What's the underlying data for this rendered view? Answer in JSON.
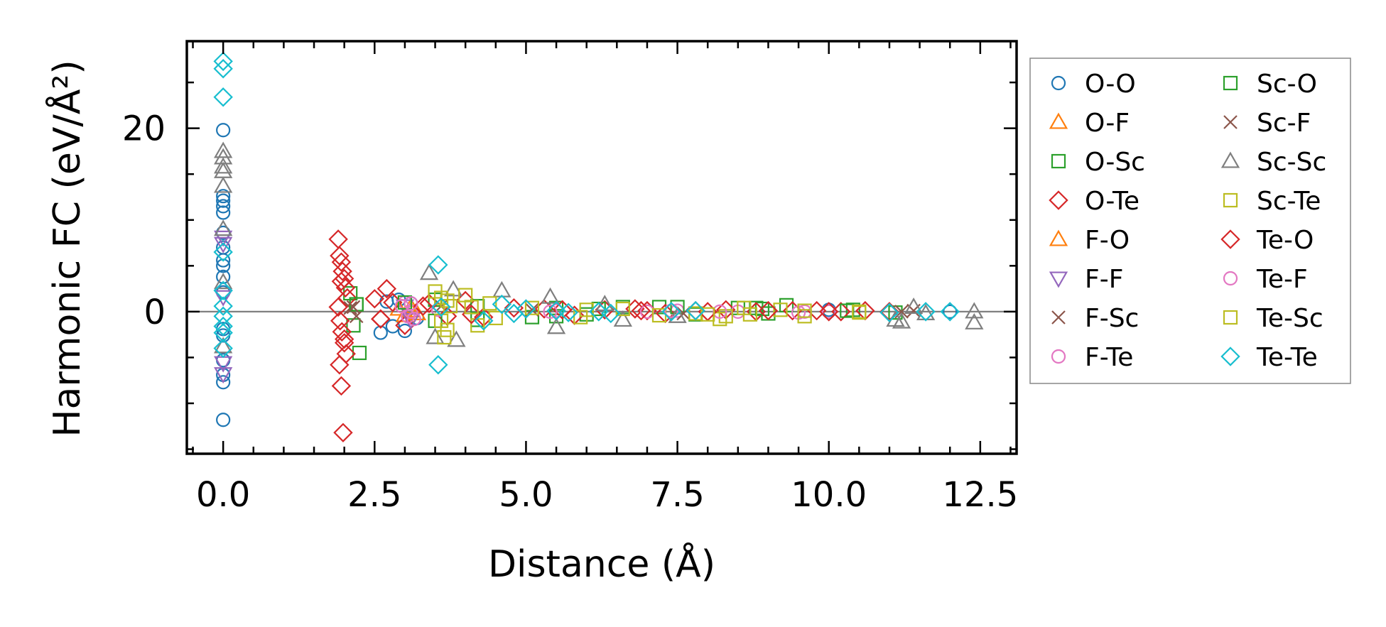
{
  "chart_data": {
    "type": "scatter",
    "title": "",
    "xlabel": "Distance (Å)",
    "ylabel": "Harmonic FC (eV/Å²)",
    "xlim": [
      -0.6,
      13.1
    ],
    "ylim": [
      -15.5,
      29.5
    ],
    "xticks": [
      0.0,
      2.5,
      5.0,
      7.5,
      10.0,
      12.5
    ],
    "xtick_labels": [
      "0.0",
      "2.5",
      "5.0",
      "7.5",
      "10.0",
      "12.5"
    ],
    "yticks": [
      0,
      20
    ],
    "ytick_labels": [
      "0",
      "20"
    ],
    "reference_line_y": 0,
    "legend_position": "outside-right",
    "series": [
      {
        "name": "O-O",
        "marker": "circle",
        "color": "#1f77b4",
        "x": [
          0,
          0,
          0,
          0,
          0,
          0,
          0,
          0,
          0,
          0,
          0,
          0,
          0,
          0,
          0,
          0,
          0,
          2.6,
          2.7,
          2.8,
          2.9,
          3.0,
          3.1,
          3.2,
          10.0,
          12.0
        ],
        "y": [
          19.8,
          12.6,
          12.1,
          11.5,
          10.8,
          8.6,
          7.0,
          5.6,
          5.0,
          3.8,
          2.1,
          -1.9,
          -2.6,
          -5.3,
          -6.9,
          -7.7,
          -11.8,
          -2.3,
          1.1,
          -1.6,
          1.3,
          -2.1,
          0.9,
          -0.7,
          0.2,
          0.0
        ]
      },
      {
        "name": "O-F",
        "marker": "triangle-up",
        "color": "#ff7f0e",
        "x": [
          2.9,
          3.0,
          3.1
        ],
        "y": [
          0.3,
          -0.4,
          0.1
        ]
      },
      {
        "name": "O-Sc",
        "marker": "square",
        "color": "#2ca02c",
        "x": [
          2.1,
          2.15,
          2.2,
          2.25,
          3.5,
          4.2,
          5.1,
          5.5,
          6.0,
          6.6,
          7.2,
          7.8,
          8.5,
          8.9,
          9.3,
          10.4,
          11.1
        ],
        "y": [
          2.0,
          -1.5,
          0.8,
          -4.5,
          1.3,
          -0.9,
          -0.6,
          0.4,
          -0.3,
          0.5,
          0.5,
          -0.3,
          0.4,
          0.3,
          0.7,
          0.2,
          -0.1
        ]
      },
      {
        "name": "O-Te",
        "marker": "diamond",
        "color": "#d62728",
        "x": [
          1.9,
          1.92,
          1.95,
          1.97,
          2.0,
          2.02,
          2.05,
          1.9,
          1.93,
          1.96,
          2.0,
          2.03,
          1.92,
          1.95,
          1.98,
          2.5,
          2.6,
          2.7,
          2.8,
          3.0,
          3.4,
          3.7,
          4.0,
          4.3,
          4.8,
          5.3,
          5.8,
          6.3,
          6.8,
          7.0,
          7.3,
          7.8,
          8.3,
          8.8,
          9.4,
          9.8,
          10.2,
          10.6,
          11.0
        ],
        "y": [
          7.9,
          6.1,
          5.4,
          4.4,
          3.6,
          2.6,
          1.5,
          0.5,
          -1.0,
          -2.2,
          -3.4,
          -4.6,
          -5.8,
          -8.1,
          -13.2,
          1.4,
          -0.8,
          2.5,
          1.0,
          -1.5,
          0.9,
          -0.5,
          1.2,
          -0.6,
          0.4,
          0.3,
          -0.4,
          0.2,
          0.3,
          0.1,
          -0.2,
          0.1,
          0.2,
          0.0,
          0.1,
          0.1,
          0.0,
          0.1,
          0.0
        ]
      },
      {
        "name": "F-O",
        "marker": "triangle-up",
        "color": "#ff7f0e",
        "x": [
          3.1,
          3.2
        ],
        "y": [
          0.5,
          -0.2
        ]
      },
      {
        "name": "F-F",
        "marker": "triangle-down",
        "color": "#9467bd",
        "x": [
          0,
          0,
          0,
          0,
          0,
          3.0,
          3.1
        ],
        "y": [
          8.1,
          7.4,
          1.6,
          -5.6,
          -6.8,
          0.6,
          -0.9
        ]
      },
      {
        "name": "F-Sc",
        "marker": "x",
        "color": "#8c564b",
        "x": [
          2.1,
          2.2,
          5.1,
          11.4
        ],
        "y": [
          0.4,
          -0.5,
          0.2,
          0.1
        ]
      },
      {
        "name": "F-Te",
        "marker": "circle",
        "color": "#e377c2",
        "x": [
          3.0,
          3.1,
          3.15,
          3.55,
          5.5,
          7.0,
          7.5,
          8.5,
          9.5,
          10.0
        ],
        "y": [
          1.0,
          0.0,
          -0.8,
          0.2,
          0.1,
          0.0,
          0.1,
          0.0,
          -0.1,
          0.0
        ]
      },
      {
        "name": "Sc-O",
        "marker": "square",
        "color": "#2ca02c",
        "x": [
          2.2,
          3.0,
          3.5,
          4.2,
          5.5,
          6.2,
          7.5,
          8.8,
          9.0,
          10.3
        ],
        "y": [
          0.8,
          1.0,
          -1.0,
          0.6,
          -0.5,
          0.3,
          0.5,
          0.4,
          -0.2,
          0.1
        ]
      },
      {
        "name": "Sc-F",
        "marker": "x",
        "color": "#8c564b",
        "x": [
          2.15,
          3.6,
          7.6,
          11.2
        ],
        "y": [
          0.5,
          0.6,
          -0.2,
          0.0
        ]
      },
      {
        "name": "Sc-Sc",
        "marker": "triangle-up",
        "color": "#7f7f7f",
        "x": [
          0,
          0,
          0,
          0,
          0,
          0,
          0,
          0,
          3.4,
          3.5,
          3.8,
          3.85,
          4.6,
          5.4,
          5.5,
          6.3,
          6.6,
          7.5,
          11.1,
          11.2,
          11.4,
          11.6,
          12.4,
          12.4
        ],
        "y": [
          17.5,
          16.8,
          15.8,
          15.3,
          13.7,
          9.0,
          3.2,
          -3.8,
          4.2,
          -2.8,
          2.4,
          -3.1,
          2.3,
          1.6,
          -1.7,
          0.8,
          -0.9,
          -0.5,
          -0.9,
          -1.1,
          0.5,
          -0.2,
          0.0,
          -1.2
        ]
      },
      {
        "name": "Sc-Te",
        "marker": "square",
        "color": "#bcbd22",
        "x": [
          3.5,
          3.6,
          3.65,
          3.7,
          3.75,
          4.0,
          4.2,
          4.4,
          5.1,
          5.9,
          6.6,
          7.2,
          7.8,
          8.2,
          8.3,
          8.6,
          8.7,
          9.2,
          9.6,
          10.5
        ],
        "y": [
          2.2,
          1.5,
          -2.8,
          -2.0,
          0.6,
          1.8,
          -1.5,
          0.9,
          0.4,
          -0.6,
          0.3,
          -0.4,
          -0.2,
          -0.8,
          -0.5,
          0.4,
          -0.3,
          0.2,
          -0.5,
          -0.1
        ]
      },
      {
        "name": "Te-O",
        "marker": "diamond",
        "color": "#d62728",
        "x": [
          1.95,
          2.0,
          2.6,
          3.3,
          4.1,
          5.6,
          6.9,
          8.0,
          9.0,
          10.0
        ],
        "y": [
          3.3,
          -3.0,
          -0.8,
          0.6,
          -0.3,
          0.2,
          0.1,
          0.0,
          0.1,
          0.0
        ]
      },
      {
        "name": "Te-F",
        "marker": "circle",
        "color": "#e377c2",
        "x": [
          2.95,
          3.05,
          3.1,
          5.4,
          7.4,
          8.2,
          9.6
        ],
        "y": [
          0.6,
          -0.5,
          0.9,
          0.0,
          0.1,
          0.0,
          0.0
        ]
      },
      {
        "name": "Te-Sc",
        "marker": "square",
        "color": "#bcbd22",
        "x": [
          3.6,
          3.7,
          4.1,
          4.5,
          6.0,
          8.0,
          9.6,
          10.5
        ],
        "y": [
          -1.0,
          1.2,
          0.5,
          -0.7,
          0.2,
          -0.3,
          0.1,
          0.0
        ]
      },
      {
        "name": "Te-Te",
        "marker": "diamond",
        "color": "#17becf",
        "x": [
          0,
          0,
          0,
          0,
          0,
          0,
          0,
          0,
          0,
          0,
          3.55,
          3.6,
          3.55,
          4.3,
          4.6,
          4.8,
          5.0,
          5.5,
          5.7,
          6.2,
          6.4,
          7.4,
          7.8,
          11.0,
          11.6,
          12.0
        ],
        "y": [
          27.3,
          26.5,
          23.4,
          6.5,
          2.3,
          0.6,
          -0.5,
          -1.6,
          -2.3,
          -4.0,
          5.1,
          0.5,
          -5.8,
          -1.0,
          0.8,
          -0.2,
          0.3,
          0.1,
          -0.1,
          0.0,
          -0.2,
          0.0,
          0.1,
          -0.1,
          0.0,
          0.0
        ]
      }
    ]
  }
}
